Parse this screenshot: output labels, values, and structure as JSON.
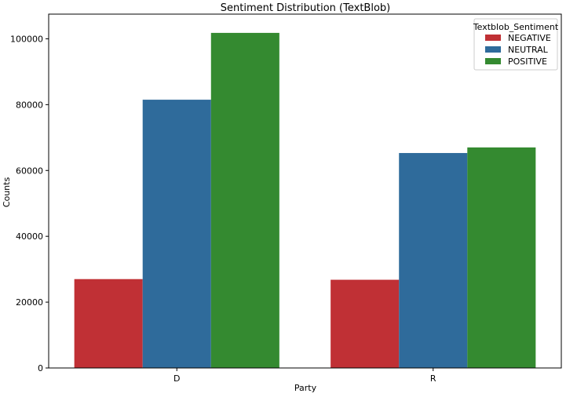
{
  "chart_data": {
    "type": "bar",
    "title": "Sentiment Distribution (TextBlob)",
    "xlabel": "Party",
    "ylabel": "Counts",
    "categories": [
      "D",
      "R"
    ],
    "series": [
      {
        "name": "NEGATIVE",
        "color": "#c03035",
        "values": [
          27000,
          26800
        ]
      },
      {
        "name": "NEUTRAL",
        "color": "#2f6b9b",
        "values": [
          81500,
          65300
        ]
      },
      {
        "name": "POSITIVE",
        "color": "#348a30",
        "values": [
          101800,
          67000
        ]
      }
    ],
    "ylim": [
      0,
      107500
    ],
    "yticks": [
      0,
      20000,
      40000,
      60000,
      80000,
      100000
    ],
    "ytick_labels": [
      "0",
      "20000",
      "40000",
      "60000",
      "80000",
      "100000"
    ],
    "legend": {
      "title": "Textblob_Sentiment",
      "position": "top-right"
    },
    "grid": false
  }
}
